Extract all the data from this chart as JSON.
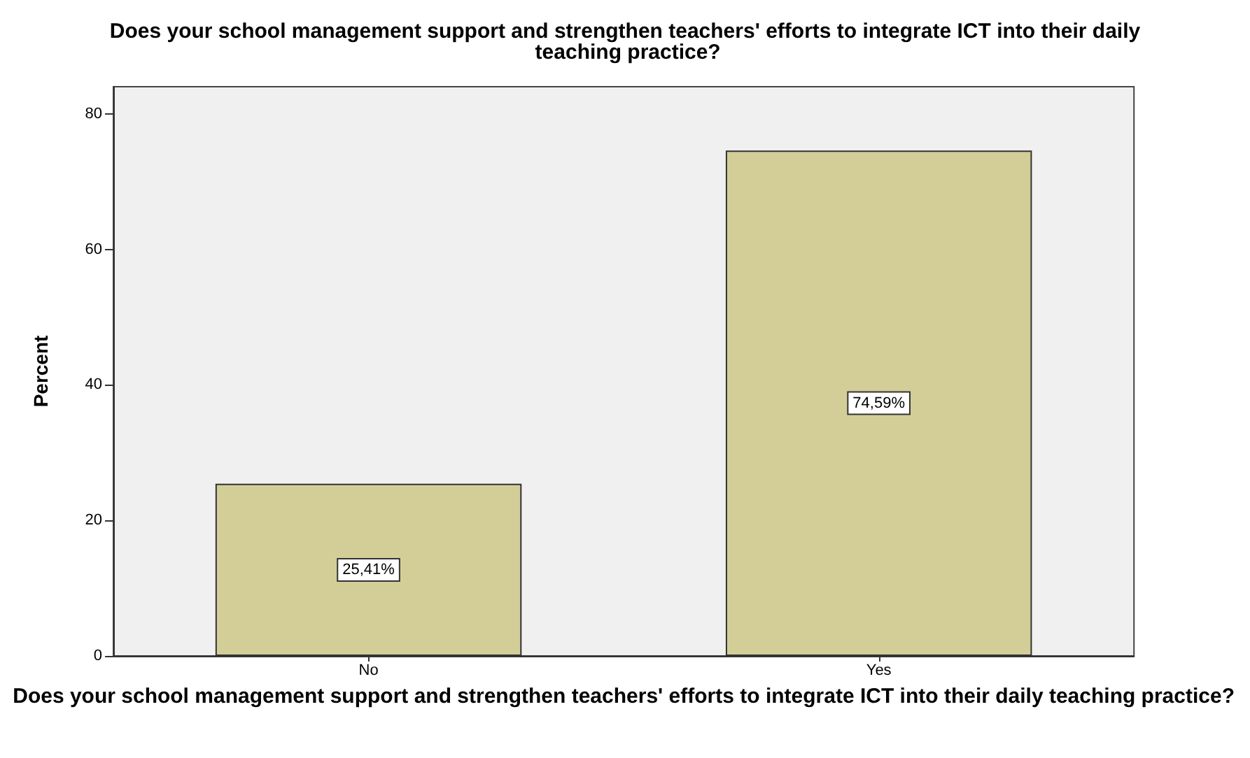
{
  "chart_data": {
    "type": "bar",
    "title": "Does your school management support and strengthen teachers' efforts to integrate ICT into their daily teaching practice?",
    "xlabel": "Does your school management support and strengthen teachers' efforts to integrate ICT into their daily teaching practice?",
    "ylabel": "Percent",
    "categories": [
      "No",
      "Yes"
    ],
    "values": [
      25.41,
      74.59
    ],
    "value_labels": [
      "25,41%",
      "74,59%"
    ],
    "color": "#d3ce98",
    "ylim": [
      0,
      84
    ],
    "yticks": [
      0,
      20,
      40,
      60,
      80
    ],
    "grid": false
  }
}
